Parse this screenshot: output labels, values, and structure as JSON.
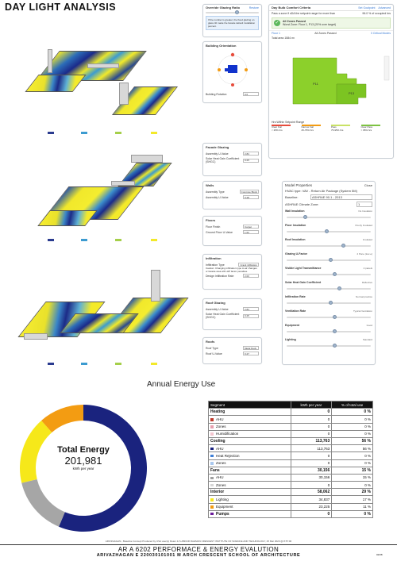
{
  "title": "DAY LIGHT ANALYSIS",
  "override_panel": {
    "title": "Override Glazing Ratio",
    "restore": "Restore",
    "note": "If the number is greater, the fixed glazing on glass 40 made the facade default installation percent."
  },
  "building_orientation": {
    "title": "Building Orientation",
    "rotation_label": "Building Rotation",
    "rotation_value": "0.0"
  },
  "daylight_panel": {
    "title": "Day Bulb Comfort Criteria",
    "tab_setpoint": "Set Goalpoint",
    "tab_advanced": "Advanced",
    "criteria": "Pass a zone if sDA the setpoint range for more than",
    "criteria_pct": "96.0 % of occupied hrs",
    "passed_title": "All Zones Passed",
    "passed_sub": "Worst Zone: Floor 1, P13 (20% over target)",
    "floor_label": "Floor 1",
    "zones_passed": "All Zones Passed",
    "view_label": "3 Critical Modes",
    "total_area": "Total area 1584 m²",
    "zone_a": "P11",
    "zone_b": "P13",
    "range_title": "Hrs Within Setpoint Range",
    "legend": [
      {
        "label": "Clear Fail",
        "sub": "< 25% hrs",
        "color": "#e74c3c"
      },
      {
        "label": "Narrow Fail",
        "sub": "25-75% hrs",
        "color": "#f39c12"
      },
      {
        "label": "Pass",
        "sub": "75-95% hrs",
        "color": "#c9e265"
      },
      {
        "label": "Clear Pass",
        "sub": "> 95% hrs",
        "color": "#7dc242"
      }
    ]
  },
  "facade_glazing": {
    "title": "Facade Glazing",
    "rows": [
      {
        "label": "Assembly U-Value",
        "value": "2.84",
        "unit": "W/m²·K"
      },
      {
        "label": "Solar Heat Gain Coefficient (SHGC)",
        "value": "0.25",
        "unit": ""
      }
    ]
  },
  "walls": {
    "title": "Walls",
    "rows": [
      {
        "label": "Assembly Type",
        "value": "Concrete Block"
      },
      {
        "label": "Assembly U-Value",
        "value": "0.28",
        "unit": "W/m²·K"
      }
    ]
  },
  "floors": {
    "title": "Floors",
    "rows": [
      {
        "label": "Floor Finish",
        "value": "Carpet"
      },
      {
        "label": "Ground Floor U-Value",
        "value": "1.62",
        "unit": "W/m²·K"
      }
    ]
  },
  "infiltration": {
    "title": "Infiltration",
    "type_label": "Infiltration Type",
    "type_value": "Crack infiltration",
    "note": "Caution: Changing infiltration type to air changes or facade area will LHP factor penalties.",
    "rate_label": "Design Infiltration Rate",
    "rate_value": "2.00",
    "rate_unit": "L/s·m"
  },
  "roof_glazing": {
    "title": "Roof Glazing",
    "rows": [
      {
        "label": "Assembly U-Value",
        "value": "2.84",
        "unit": "W/m²·K"
      },
      {
        "label": "Solar Heat Gain Coefficient (SHGC)",
        "value": "0.25",
        "unit": ""
      }
    ]
  },
  "roofs": {
    "title": "Roofs",
    "rows": [
      {
        "label": "Roof Type",
        "value": "Metal Deck"
      },
      {
        "label": "Roof U-Value",
        "value": "0.27",
        "unit": "W/m²·K"
      }
    ]
  },
  "model_properties": {
    "title": "Model Properties",
    "close": "Close",
    "hvac": "HVAC type: VAV - Return Air Package (System 5M)",
    "baseline_label": "Baseline:",
    "baseline_value": "ASHRAE 90.1 - 2013",
    "climate_label": "ASHRAE Climate Zone:",
    "climate_value": "1",
    "sliders": [
      {
        "label": "Wall Insulation",
        "value": "No Insulation",
        "pos": 0.2
      },
      {
        "label": "Floor Insulation",
        "value": "Poorly Insulated",
        "pos": 0.45
      },
      {
        "label": "Roof Insulation",
        "value": "Insulated",
        "pos": 0.65
      },
      {
        "label": "Glazing U-Factor",
        "value": "2 Pane (low-e)",
        "pos": 0.5
      },
      {
        "label": "Visible Light Transmittance",
        "value": "2 panels",
        "pos": 0.55
      },
      {
        "label": "Solar Heat Gain Coefficient",
        "value": "Reflective",
        "pos": 0.6
      },
      {
        "label": "Infiltration Rate",
        "value": "Normal practice",
        "pos": 0.5
      },
      {
        "label": "Ventilation Rate",
        "value": "Typical Ventilation",
        "pos": 0.55
      },
      {
        "label": "Equipment",
        "value": "Good",
        "pos": 0.55
      },
      {
        "label": "Lighting",
        "value": "Standard",
        "pos": 0.55
      }
    ]
  },
  "energy": {
    "section_title": "Annual Energy Use",
    "total_label": "Total Energy",
    "total_value": "201,981",
    "total_unit": "kWh per year",
    "headers": [
      "Segment",
      "kWh per year",
      "% of total use"
    ],
    "rows": [
      {
        "type": "cat",
        "label": "Heating",
        "kwh": "0",
        "pct": "0 %"
      },
      {
        "type": "sub",
        "label": "AHU",
        "kwh": "0",
        "pct": "0 %",
        "color": "#c0392b"
      },
      {
        "type": "sub",
        "label": "Zones",
        "kwh": "0",
        "pct": "0 %",
        "color": "#e8a0b0"
      },
      {
        "type": "sub",
        "label": "Humidification",
        "kwh": "0",
        "pct": "0 %",
        "color": "#f4c6cf"
      },
      {
        "type": "cat",
        "label": "Cooling",
        "kwh": "113,763",
        "pct": "56 %"
      },
      {
        "type": "sub",
        "label": "AHU",
        "kwh": "113,763",
        "pct": "56 %",
        "color": "#1a237e"
      },
      {
        "type": "sub",
        "label": "Heat Rejection",
        "kwh": "0",
        "pct": "0 %",
        "color": "#3f7fd6"
      },
      {
        "type": "sub",
        "label": "Zones",
        "kwh": "0",
        "pct": "0 %",
        "color": "#a9c8ee"
      },
      {
        "type": "cat",
        "label": "Fans",
        "kwh": "30,156",
        "pct": "15 %"
      },
      {
        "type": "sub",
        "label": "AHU",
        "kwh": "30,156",
        "pct": "15 %",
        "color": "#9e9e9e"
      },
      {
        "type": "sub",
        "label": "Zones",
        "kwh": "0",
        "pct": "0 %",
        "color": "#d6d6d6"
      },
      {
        "type": "cat",
        "label": "Interior",
        "kwh": "58,062",
        "pct": "29 %"
      },
      {
        "type": "sub",
        "label": "Lighting",
        "kwh": "34,837",
        "pct": "17 %",
        "color": "#f6e81a"
      },
      {
        "type": "sub",
        "label": "Equipment",
        "kwh": "23,225",
        "pct": "11 %",
        "color": "#f39c12"
      },
      {
        "type": "cat",
        "label": "Pumps",
        "kwh": "0",
        "pct": "0 %",
        "color": "#6a1b9a"
      }
    ]
  },
  "chart_data": {
    "type": "pie",
    "donut": true,
    "categories": [
      "Cooling AHU",
      "Fans AHU",
      "Lighting",
      "Equipment"
    ],
    "values": [
      113763,
      30156,
      34837,
      23225
    ],
    "colors": [
      "#1a237e",
      "#a6a6a6",
      "#f6e81a",
      "#f39c12"
    ]
  },
  "footer": {
    "credit": "ARIVZHAGAN - Baseline Concept Produced by USA user(s) Roam & S.ABDUR RAHMAN CRESCENT INSTITUTE OF SCIENCE AND TECHNOLOGY, 25 Mar 2020 @ 8:57:00",
    "course": "AR A 6202 PERFORMACE & ENERGY EVALUTION",
    "student": "ARIVAZHAGAN E  220030101001  M ARCH  CRESCENT SCHOOL  OF  ARCHITECTURE",
    "page": "02/08"
  }
}
